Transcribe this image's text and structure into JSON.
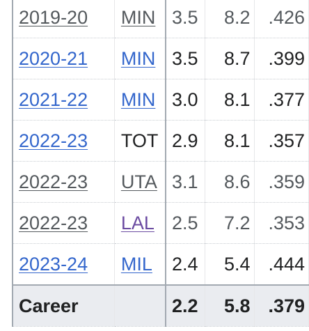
{
  "table": {
    "rows": [
      {
        "season": "2019-20",
        "team": "MIN",
        "s1": "3.5",
        "s2": "8.2",
        "s3": ".426"
      },
      {
        "season": "2020-21",
        "team": "MIN",
        "s1": "3.5",
        "s2": "8.7",
        "s3": ".399"
      },
      {
        "season": "2021-22",
        "team": "MIN",
        "s1": "3.0",
        "s2": "8.1",
        "s3": ".377"
      },
      {
        "season": "2022-23",
        "team": "TOT",
        "s1": "2.9",
        "s2": "8.1",
        "s3": ".357"
      },
      {
        "season": "2022-23",
        "team": "UTA",
        "s1": "3.1",
        "s2": "8.6",
        "s3": ".359"
      },
      {
        "season": "2022-23",
        "team": "LAL",
        "s1": "2.5",
        "s2": "7.2",
        "s3": ".353"
      },
      {
        "season": "2023-24",
        "team": "MIL",
        "s1": "2.4",
        "s2": "5.4",
        "s3": ".444"
      }
    ],
    "career": {
      "label": "Career",
      "team": "",
      "s1": "2.2",
      "s2": "5.8",
      "s3": ".379"
    }
  },
  "colors": {
    "link": "#3366cc",
    "visited_link": "#6b4ba1",
    "muted_text": "#54595d",
    "career_background": "#eaecf0"
  }
}
